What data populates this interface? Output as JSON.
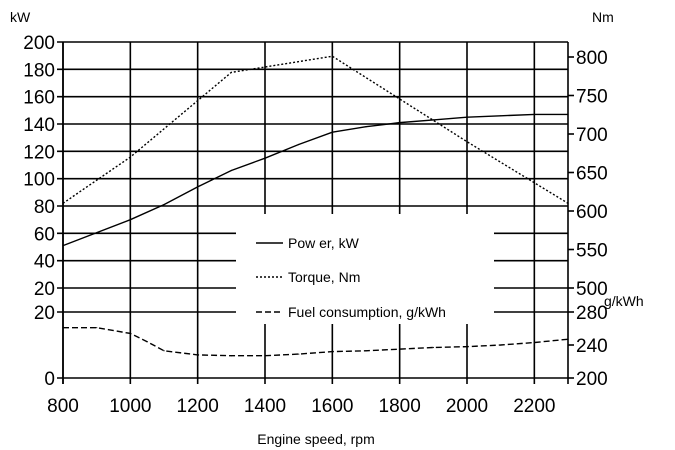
{
  "chart_data": {
    "type": "line",
    "xlabel": "Engine speed, rpm",
    "x_ticks": [
      800,
      1000,
      1200,
      1400,
      1600,
      1800,
      2000,
      2200
    ],
    "xlim": [
      800,
      2300
    ],
    "left_axis": {
      "unit": "kW",
      "upper": {
        "range": [
          20,
          200
        ],
        "ticks": [
          20,
          40,
          60,
          80,
          100,
          120,
          140,
          160,
          180,
          200
        ]
      },
      "lower": {
        "range": [
          0,
          20
        ],
        "ticks": [
          0,
          20
        ]
      }
    },
    "right_axis": {
      "torque_unit": "Nm",
      "torque": {
        "range": [
          500,
          800
        ],
        "ticks": [
          500,
          550,
          600,
          650,
          700,
          750,
          800
        ]
      },
      "fuel_unit": "g/kWh",
      "fuel": {
        "range": [
          200,
          280
        ],
        "ticks": [
          200,
          240,
          280
        ]
      }
    },
    "series": [
      {
        "name": "Pow er, kW",
        "style": "solid",
        "axis": "left",
        "x": [
          800,
          1000,
          1100,
          1200,
          1300,
          1400,
          1500,
          1600,
          1700,
          1800,
          1900,
          2000,
          2100,
          2200,
          2300
        ],
        "y": [
          51,
          70,
          81,
          94,
          106,
          115,
          125,
          134,
          138,
          141,
          143,
          145,
          146,
          147,
          147
        ]
      },
      {
        "name": "Torque, Nm",
        "style": "dotted",
        "axis": "right-torque",
        "x": [
          800,
          1000,
          1300,
          1600,
          2000,
          2300
        ],
        "y": [
          610,
          670,
          780,
          801,
          690,
          610
        ]
      },
      {
        "name": "Fuel consumption, g/kWh",
        "style": "dashed",
        "axis": "right-fuel",
        "x": [
          800,
          900,
          1000,
          1050,
          1100,
          1200,
          1300,
          1400,
          1500,
          1600,
          1700,
          1800,
          1900,
          2000,
          2100,
          2200,
          2300
        ],
        "y": [
          261,
          261,
          254,
          244,
          233,
          228,
          227,
          227,
          229,
          232,
          233,
          235,
          237,
          238,
          240,
          243,
          247
        ]
      }
    ],
    "grid": true,
    "legend_position": "center-bottom"
  }
}
